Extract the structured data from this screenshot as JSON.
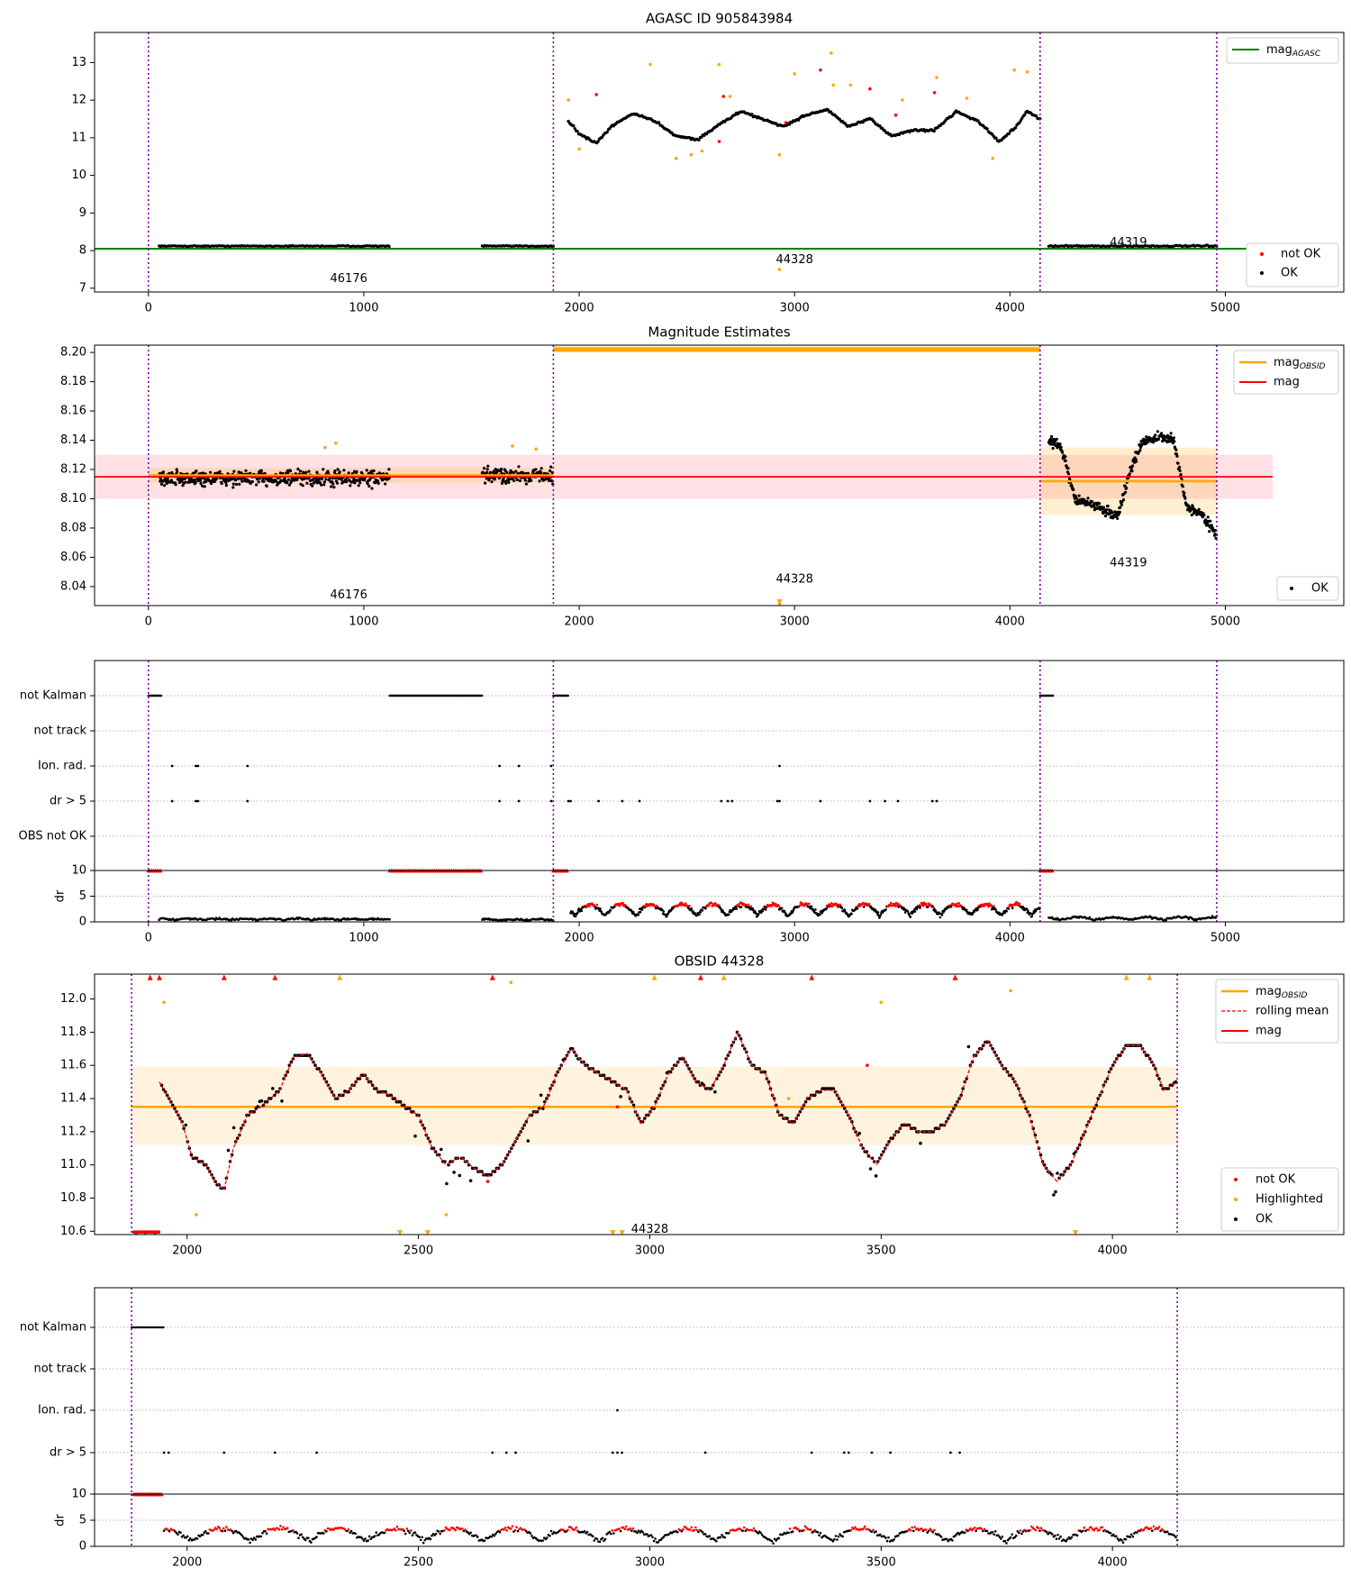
{
  "chart_data": [
    {
      "type": "scatter",
      "title": "AGASC ID 905843984",
      "xlim": [
        -250,
        5550
      ],
      "ylim": [
        6.9,
        13.8
      ],
      "x_ticks": [
        0,
        1000,
        2000,
        3000,
        4000,
        5000
      ],
      "y_ticks": [
        7,
        8,
        9,
        10,
        11,
        12,
        13
      ],
      "obsid_boundaries": [
        0,
        1880,
        4140,
        4960
      ],
      "hline": {
        "name": "mag_AGASC",
        "y": 8.05,
        "x_range": [
          -250,
          5220
        ],
        "color": "#008000"
      },
      "obsid_labels": [
        {
          "text": "46176",
          "x": 930,
          "y": 7.25
        },
        {
          "text": "44328",
          "x": 3000,
          "y": 7.75
        },
        {
          "text": "44319",
          "x": 4550,
          "y": 8.2
        }
      ],
      "segments_ok": [
        {
          "x_start": 50,
          "x_end": 1120,
          "level": 8.12,
          "scatter": 0.02
        },
        {
          "x_start": 1550,
          "x_end": 1880,
          "level": 8.12,
          "scatter": 0.02
        },
        {
          "x_start": 4180,
          "x_end": 4960,
          "level": 8.12,
          "scatter": 0.03
        }
      ],
      "obsid_44328_track": [
        [
          1950,
          11.45
        ],
        [
          2000,
          11.1
        ],
        [
          2080,
          10.85
        ],
        [
          2150,
          11.3
        ],
        [
          2250,
          11.65
        ],
        [
          2350,
          11.45
        ],
        [
          2450,
          11.05
        ],
        [
          2550,
          10.95
        ],
        [
          2650,
          11.35
        ],
        [
          2750,
          11.7
        ],
        [
          2850,
          11.5
        ],
        [
          2950,
          11.3
        ],
        [
          3050,
          11.6
        ],
        [
          3150,
          11.75
        ],
        [
          3250,
          11.3
        ],
        [
          3350,
          11.5
        ],
        [
          3450,
          11.05
        ],
        [
          3550,
          11.2
        ],
        [
          3650,
          11.2
        ],
        [
          3750,
          11.7
        ],
        [
          3850,
          11.45
        ],
        [
          3950,
          10.9
        ],
        [
          4030,
          11.3
        ],
        [
          4080,
          11.7
        ],
        [
          4140,
          11.5
        ]
      ],
      "not_ok_points": [
        [
          2080,
          12.15
        ],
        [
          2670,
          12.1
        ],
        [
          2650,
          10.9
        ],
        [
          3120,
          12.8
        ],
        [
          3350,
          12.3
        ],
        [
          3470,
          11.6
        ],
        [
          3650,
          12.2
        ],
        [
          2960,
          11.4
        ]
      ],
      "highlighted_points": [
        [
          1950,
          12.0
        ],
        [
          2000,
          10.7
        ],
        [
          2330,
          12.95
        ],
        [
          2450,
          10.45
        ],
        [
          2520,
          10.55
        ],
        [
          2570,
          10.65
        ],
        [
          2650,
          12.95
        ],
        [
          2700,
          12.1
        ],
        [
          2930,
          10.55
        ],
        [
          3000,
          12.7
        ],
        [
          3170,
          13.25
        ],
        [
          3180,
          12.4
        ],
        [
          3260,
          12.4
        ],
        [
          3500,
          12.0
        ],
        [
          3660,
          12.6
        ],
        [
          3800,
          12.05
        ],
        [
          3920,
          10.45
        ],
        [
          4020,
          12.8
        ],
        [
          4080,
          12.75
        ],
        [
          2930,
          7.5
        ]
      ],
      "legend_top": [
        "mag_AGASC"
      ],
      "legend_bottom": [
        "not OK",
        "OK"
      ],
      "colors": {
        "ok": "#000000",
        "not_ok": "#ff0000",
        "highlighted": "#ffa500",
        "agasc": "#008000"
      }
    },
    {
      "type": "scatter",
      "title": "Magnitude Estimates",
      "xlim": [
        -250,
        5550
      ],
      "ylim": [
        8.027,
        8.205
      ],
      "x_ticks": [
        0,
        1000,
        2000,
        3000,
        4000,
        5000
      ],
      "y_ticks": [
        8.04,
        8.06,
        8.08,
        8.1,
        8.12,
        8.14,
        8.16,
        8.18,
        8.2
      ],
      "obsid_boundaries": [
        0,
        1880,
        4140,
        4960
      ],
      "mag": {
        "value": 8.115,
        "band": [
          8.1,
          8.13
        ],
        "x_range": [
          -250,
          5220
        ],
        "color": "#ff0000"
      },
      "mag_obsid": [
        {
          "x_range": [
            0,
            1880
          ],
          "value": 8.116,
          "band": [
            8.111,
            8.121
          ]
        },
        {
          "x_range": [
            1880,
            4140
          ],
          "value": 8.202,
          "band": [
            8.2,
            8.205
          ]
        },
        {
          "x_range": [
            4140,
            4960
          ],
          "value": 8.112,
          "band": [
            8.089,
            8.135
          ]
        }
      ],
      "obsid_labels": [
        {
          "text": "46176",
          "x": 930,
          "y": 8.034
        },
        {
          "text": "44328",
          "x": 3000,
          "y": 8.045
        },
        {
          "text": "44319",
          "x": 4550,
          "y": 8.056
        }
      ],
      "segments_ok": [
        {
          "x_start": 50,
          "x_end": 1120,
          "level": 8.114,
          "scatter": 0.008
        },
        {
          "x_start": 1550,
          "x_end": 1880,
          "level": 8.116,
          "scatter": 0.008
        }
      ],
      "obsid_44319_track": [
        [
          4180,
          8.14
        ],
        [
          4240,
          8.135
        ],
        [
          4300,
          8.1
        ],
        [
          4400,
          8.095
        ],
        [
          4500,
          8.088
        ],
        [
          4560,
          8.12
        ],
        [
          4620,
          8.14
        ],
        [
          4700,
          8.142
        ],
        [
          4760,
          8.14
        ],
        [
          4820,
          8.095
        ],
        [
          4900,
          8.088
        ],
        [
          4960,
          8.075
        ]
      ],
      "highlighted_points": [
        [
          820,
          8.135
        ],
        [
          870,
          8.138
        ],
        [
          1690,
          8.136
        ],
        [
          1800,
          8.134
        ],
        [
          2930,
          8.028
        ]
      ],
      "legend_top": [
        "mag_OBSID",
        "mag"
      ],
      "legend_bottom": [
        "OK"
      ]
    },
    {
      "type": "scatter",
      "title": "",
      "xlim": [
        -250,
        5550
      ],
      "x_ticks": [
        0,
        1000,
        2000,
        3000,
        4000,
        5000
      ],
      "categories": [
        "not Kalman",
        "not track",
        "Ion. rad.",
        "dr > 5",
        "OBS not OK"
      ],
      "obsid_boundaries": [
        0,
        1880,
        4140,
        4960
      ],
      "flag_ranges": [
        {
          "category": "not Kalman",
          "ranges": [
            [
              0,
              60
            ],
            [
              1120,
              1550
            ],
            [
              1880,
              1950
            ],
            [
              4140,
              4200
            ]
          ]
        }
      ],
      "flag_points": [
        {
          "category": "Ion. rad.",
          "x": [
            110,
            220,
            230,
            460,
            1630,
            1720,
            1870,
            2930
          ]
        },
        {
          "category": "dr > 5",
          "x": [
            110,
            220,
            230,
            460,
            1630,
            1720,
            1870,
            1950,
            1960,
            2090,
            2200,
            2280,
            2660,
            2690,
            2710,
            2920,
            2930,
            3120,
            3350,
            3420,
            3480,
            3640,
            3660
          ]
        }
      ],
      "dr_ylim": [
        0,
        10
      ],
      "dr_ticks": [
        0,
        5,
        10
      ],
      "dr_label": "dr"
    },
    {
      "type": "line",
      "title": "OBSID 44328",
      "xlim": [
        1800,
        4500
      ],
      "ylim": [
        10.58,
        12.15
      ],
      "x_ticks": [
        2000,
        2500,
        3000,
        3500,
        4000
      ],
      "y_ticks": [
        10.6,
        10.8,
        11.0,
        11.2,
        11.4,
        11.6,
        11.8,
        12.0
      ],
      "obsid_boundaries": [
        1880,
        4140
      ],
      "mag_obsid": {
        "value": 11.35,
        "band": [
          11.12,
          11.59
        ],
        "x_range": [
          1880,
          4140
        ]
      },
      "mag_track": [
        [
          1940,
          11.5
        ],
        [
          1960,
          11.4
        ],
        [
          1990,
          11.25
        ],
        [
          2010,
          11.05
        ],
        [
          2040,
          11.0
        ],
        [
          2060,
          10.9
        ],
        [
          2080,
          10.85
        ],
        [
          2100,
          11.1
        ],
        [
          2130,
          11.3
        ],
        [
          2160,
          11.35
        ],
        [
          2200,
          11.45
        ],
        [
          2230,
          11.65
        ],
        [
          2260,
          11.67
        ],
        [
          2290,
          11.55
        ],
        [
          2320,
          11.4
        ],
        [
          2350,
          11.45
        ],
        [
          2380,
          11.55
        ],
        [
          2410,
          11.45
        ],
        [
          2440,
          11.42
        ],
        [
          2470,
          11.35
        ],
        [
          2500,
          11.3
        ],
        [
          2530,
          11.1
        ],
        [
          2560,
          11.0
        ],
        [
          2590,
          11.05
        ],
        [
          2620,
          10.98
        ],
        [
          2650,
          10.93
        ],
        [
          2680,
          11.0
        ],
        [
          2710,
          11.15
        ],
        [
          2740,
          11.3
        ],
        [
          2770,
          11.35
        ],
        [
          2800,
          11.55
        ],
        [
          2830,
          11.7
        ],
        [
          2860,
          11.6
        ],
        [
          2890,
          11.55
        ],
        [
          2920,
          11.5
        ],
        [
          2950,
          11.45
        ],
        [
          2980,
          11.25
        ],
        [
          3010,
          11.35
        ],
        [
          3040,
          11.55
        ],
        [
          3070,
          11.65
        ],
        [
          3100,
          11.5
        ],
        [
          3130,
          11.45
        ],
        [
          3160,
          11.6
        ],
        [
          3190,
          11.8
        ],
        [
          3220,
          11.6
        ],
        [
          3250,
          11.55
        ],
        [
          3280,
          11.3
        ],
        [
          3310,
          11.25
        ],
        [
          3340,
          11.4
        ],
        [
          3370,
          11.45
        ],
        [
          3400,
          11.45
        ],
        [
          3430,
          11.3
        ],
        [
          3460,
          11.1
        ],
        [
          3490,
          11.0
        ],
        [
          3520,
          11.15
        ],
        [
          3550,
          11.25
        ],
        [
          3580,
          11.2
        ],
        [
          3610,
          11.2
        ],
        [
          3640,
          11.25
        ],
        [
          3670,
          11.4
        ],
        [
          3700,
          11.65
        ],
        [
          3730,
          11.75
        ],
        [
          3760,
          11.6
        ],
        [
          3790,
          11.5
        ],
        [
          3820,
          11.3
        ],
        [
          3850,
          11.0
        ],
        [
          3880,
          10.9
        ],
        [
          3910,
          11.0
        ],
        [
          3940,
          11.2
        ],
        [
          3970,
          11.4
        ],
        [
          4000,
          11.6
        ],
        [
          4030,
          11.72
        ],
        [
          4060,
          11.72
        ],
        [
          4090,
          11.6
        ],
        [
          4110,
          11.45
        ],
        [
          4140,
          11.5
        ]
      ],
      "not_ok_points": [
        [
          1890,
          10.59
        ],
        [
          1910,
          10.59
        ],
        [
          1930,
          10.59
        ],
        [
          2650,
          10.9
        ],
        [
          3470,
          11.6
        ],
        [
          2930,
          11.35
        ]
      ],
      "highlighted_points": [
        [
          1950,
          11.98
        ],
        [
          2020,
          10.7
        ],
        [
          2560,
          10.7
        ],
        [
          2700,
          12.1
        ],
        [
          3300,
          11.4
        ],
        [
          3500,
          11.98
        ],
        [
          3780,
          12.05
        ],
        [
          1920,
          12.13
        ],
        [
          2660,
          12.13
        ],
        [
          3010,
          12.13
        ],
        [
          3160,
          12.13
        ],
        [
          3660,
          12.13
        ],
        [
          4030,
          12.13
        ],
        [
          4080,
          12.13
        ],
        [
          2330,
          12.13
        ],
        [
          2460,
          10.58
        ],
        [
          2520,
          10.58
        ],
        [
          2920,
          10.58
        ],
        [
          2940,
          10.58
        ],
        [
          3920,
          10.58
        ]
      ],
      "top_not_ok_markers": [
        1920,
        1940,
        2080,
        2190,
        2660,
        3110,
        3350,
        3660
      ],
      "obsid_labels": [
        {
          "text": "44328",
          "x": 3000,
          "y": 10.61
        }
      ],
      "legend_top": [
        "mag_OBSID",
        "rolling mean",
        "mag"
      ],
      "legend_bottom": [
        "not OK",
        "Highlighted",
        "OK"
      ]
    },
    {
      "type": "scatter",
      "title": "",
      "xlim": [
        1800,
        4500
      ],
      "x_ticks": [
        2000,
        2500,
        3000,
        3500,
        4000
      ],
      "categories": [
        "not Kalman",
        "not track",
        "Ion. rad.",
        "dr > 5"
      ],
      "obsid_boundaries": [
        1880,
        4140
      ],
      "flag_ranges": [
        {
          "category": "not Kalman",
          "ranges": [
            [
              1880,
              1950
            ]
          ]
        }
      ],
      "flag_points": [
        {
          "category": "Ion. rad.",
          "x": [
            2930
          ]
        },
        {
          "category": "dr > 5",
          "x": [
            1950,
            1960,
            2080,
            2190,
            2280,
            2660,
            2690,
            2710,
            2920,
            2930,
            2940,
            3120,
            3350,
            3420,
            3430,
            3480,
            3520,
            3650,
            3670
          ]
        }
      ],
      "dr_ylim": [
        0,
        10
      ],
      "dr_ticks": [
        0,
        5,
        10
      ],
      "dr_label": "dr"
    }
  ],
  "labels": {
    "not_ok": "not OK",
    "ok": "OK",
    "highlighted": "Highlighted",
    "mag_agasc_base": "mag",
    "mag_agasc_sub": "AGASC",
    "mag_obsid_base": "mag",
    "mag_obsid_sub": "OBSID",
    "mag": "mag",
    "rolling_mean": "rolling mean"
  }
}
